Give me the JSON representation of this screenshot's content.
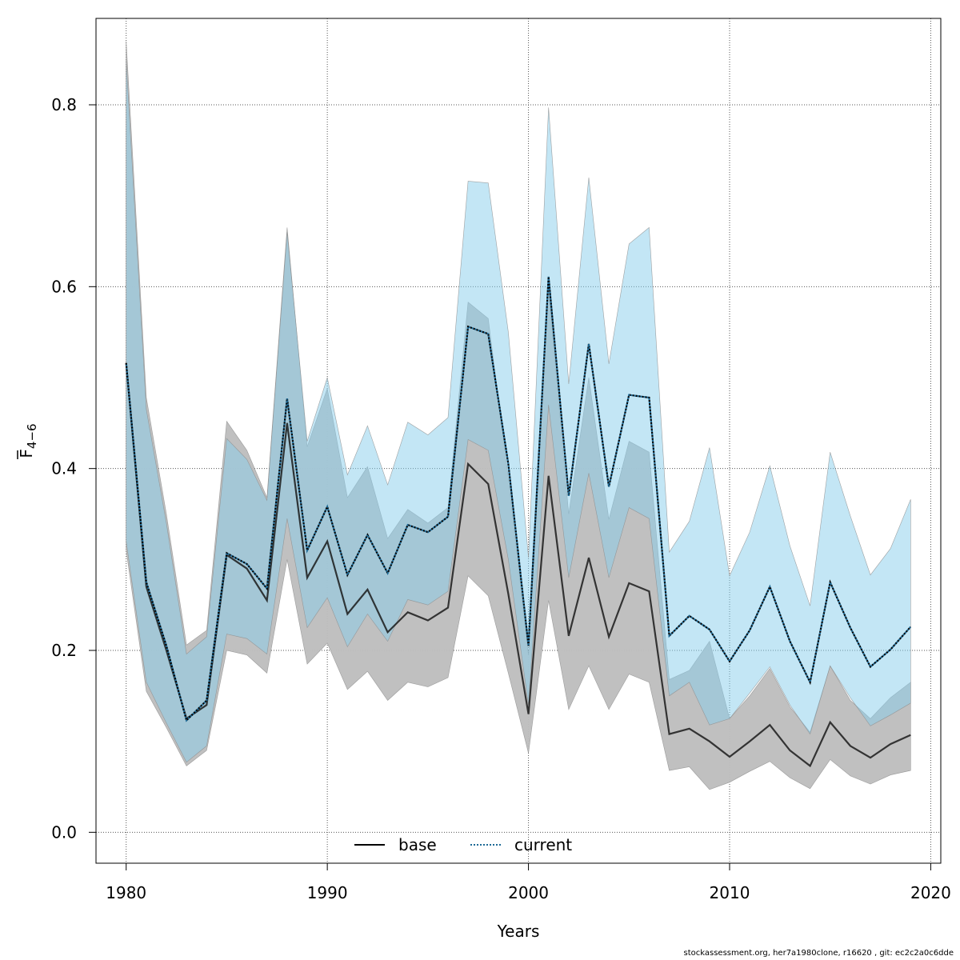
{
  "chart_data": {
    "type": "line",
    "xlabel": "Years",
    "ylabel": {
      "main": "F",
      "sub": "4−6"
    },
    "xlim": [
      1978.5,
      2020.5
    ],
    "ylim": [
      -0.034,
      0.895
    ],
    "xticks": [
      1980,
      1990,
      2000,
      2010,
      2020
    ],
    "yticks": [
      0.0,
      0.2,
      0.4,
      0.6,
      0.8
    ],
    "ytick_labels": [
      "0.0",
      "0.2",
      "0.4",
      "0.6",
      "0.8"
    ],
    "grid": true,
    "legend_position": "bottom-center",
    "x": [
      1980,
      1981,
      1982,
      1983,
      1984,
      1985,
      1986,
      1987,
      1988,
      1989,
      1990,
      1991,
      1992,
      1993,
      1994,
      1995,
      1996,
      1997,
      1998,
      1999,
      2000,
      2001,
      2002,
      2003,
      2004,
      2005,
      2006,
      2007,
      2008,
      2009,
      2010,
      2011,
      2012,
      2013,
      2014,
      2015,
      2016,
      2017,
      2018,
      2019
    ],
    "series": [
      {
        "name": "base",
        "line_style": "solid",
        "line_color": "#1a1a1a",
        "band_color": "#bebebe",
        "values": [
          0.516,
          0.27,
          0.2,
          0.125,
          0.14,
          0.305,
          0.29,
          0.255,
          0.45,
          0.28,
          0.32,
          0.24,
          0.267,
          0.22,
          0.242,
          0.233,
          0.247,
          0.405,
          0.383,
          0.262,
          0.13,
          0.392,
          0.216,
          0.302,
          0.215,
          0.274,
          0.265,
          0.108,
          0.114,
          0.1,
          0.083,
          0.1,
          0.118,
          0.09,
          0.073,
          0.121,
          0.095,
          0.082,
          0.097,
          0.107
        ],
        "lower": [
          0.31,
          0.155,
          0.115,
          0.073,
          0.09,
          0.2,
          0.195,
          0.175,
          0.3,
          0.185,
          0.208,
          0.157,
          0.177,
          0.145,
          0.165,
          0.16,
          0.17,
          0.282,
          0.26,
          0.175,
          0.087,
          0.255,
          0.135,
          0.183,
          0.135,
          0.174,
          0.165,
          0.068,
          0.072,
          0.047,
          0.055,
          0.067,
          0.078,
          0.06,
          0.048,
          0.08,
          0.062,
          0.053,
          0.063,
          0.068
        ],
        "upper": [
          0.87,
          0.478,
          0.35,
          0.206,
          0.222,
          0.452,
          0.42,
          0.368,
          0.665,
          0.424,
          0.488,
          0.368,
          0.402,
          0.323,
          0.355,
          0.34,
          0.357,
          0.583,
          0.565,
          0.39,
          0.195,
          0.598,
          0.35,
          0.5,
          0.344,
          0.43,
          0.418,
          0.168,
          0.178,
          0.21,
          0.125,
          0.15,
          0.18,
          0.138,
          0.11,
          0.183,
          0.145,
          0.125,
          0.148,
          0.165
        ]
      },
      {
        "name": "current",
        "line_style": "dotted",
        "line_color": "#1e6a96",
        "band_color": "#87ceeb",
        "values": [
          0.516,
          0.275,
          0.205,
          0.123,
          0.145,
          0.307,
          0.295,
          0.268,
          0.477,
          0.31,
          0.358,
          0.283,
          0.327,
          0.285,
          0.338,
          0.33,
          0.347,
          0.556,
          0.548,
          0.405,
          0.205,
          0.611,
          0.37,
          0.537,
          0.38,
          0.481,
          0.478,
          0.216,
          0.238,
          0.223,
          0.188,
          0.222,
          0.27,
          0.21,
          0.165,
          0.275,
          0.225,
          0.182,
          0.201,
          0.226
        ],
        "lower": [
          0.32,
          0.165,
          0.12,
          0.077,
          0.095,
          0.218,
          0.213,
          0.196,
          0.345,
          0.225,
          0.258,
          0.204,
          0.24,
          0.21,
          0.256,
          0.25,
          0.265,
          0.432,
          0.42,
          0.3,
          0.14,
          0.47,
          0.28,
          0.395,
          0.28,
          0.357,
          0.345,
          0.15,
          0.165,
          0.118,
          0.125,
          0.153,
          0.182,
          0.14,
          0.108,
          0.183,
          0.148,
          0.117,
          0.129,
          0.142
        ],
        "upper": [
          0.85,
          0.465,
          0.34,
          0.196,
          0.215,
          0.433,
          0.41,
          0.365,
          0.66,
          0.43,
          0.5,
          0.393,
          0.447,
          0.382,
          0.451,
          0.437,
          0.456,
          0.716,
          0.714,
          0.55,
          0.302,
          0.797,
          0.493,
          0.72,
          0.515,
          0.647,
          0.665,
          0.308,
          0.342,
          0.423,
          0.282,
          0.33,
          0.403,
          0.315,
          0.249,
          0.418,
          0.348,
          0.283,
          0.312,
          0.366
        ]
      }
    ]
  },
  "footer_text": "stockassessment.org, her7a1980clone, r16620 , git: ec2c2a0c6dde"
}
